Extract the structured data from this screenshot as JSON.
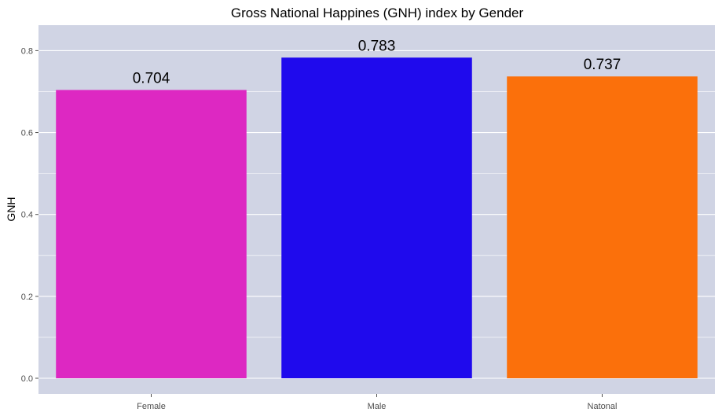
{
  "chart_data": {
    "type": "bar",
    "title": "Gross National Happines (GNH) index by Gender",
    "xlabel": "",
    "ylabel": "GNH",
    "categories": [
      "Female",
      "Male",
      "Natonal"
    ],
    "values": [
      0.704,
      0.783,
      0.737
    ],
    "data_labels": [
      "0.704",
      "0.783",
      "0.737"
    ],
    "bar_colors": [
      "#dd28c2",
      "#1f0aed",
      "#fb700b"
    ],
    "y_ticks": [
      0.0,
      0.2,
      0.4,
      0.6,
      0.8
    ],
    "y_tick_labels": [
      "0.0",
      "0.2",
      "0.4",
      "0.6",
      "0.8"
    ],
    "ylim": [
      0,
      0.86
    ],
    "grid": true,
    "legend": "none",
    "panel_color": "#d0d4e4",
    "gridline_color": "#ffffff"
  }
}
